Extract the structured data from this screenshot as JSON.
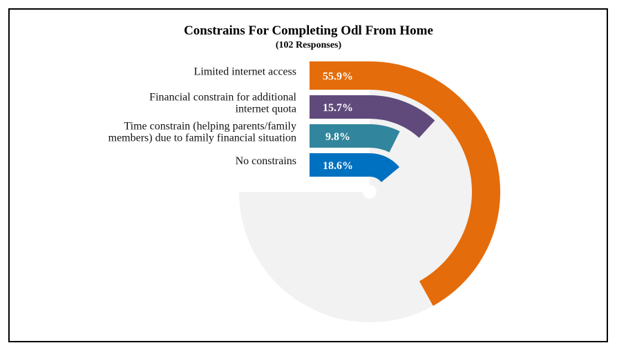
{
  "chart_data": {
    "type": "radial-bar",
    "title": "Constrains For Completing Odl From Home",
    "subtitle": "(102 Responses)",
    "max": 100,
    "series": [
      {
        "category": [
          "Limited internet access"
        ],
        "value": 55.9,
        "label": "55.9%",
        "color": "#E46C0A"
      },
      {
        "category": [
          "Financial constrain for additional",
          "internet quota"
        ],
        "value": 15.7,
        "label": "15.7%",
        "color": "#604A7B"
      },
      {
        "category": [
          "Time constrain (helping parents/family",
          "members) due to  family financial situation"
        ],
        "value": 9.8,
        "label": "9.8%",
        "color": "#31859C"
      },
      {
        "category": [
          "No constrains"
        ],
        "value": 18.6,
        "label": "18.6%",
        "color": "#0070C0"
      }
    ],
    "track_color": "#F2F2F2",
    "grid": false,
    "legend": "none"
  }
}
